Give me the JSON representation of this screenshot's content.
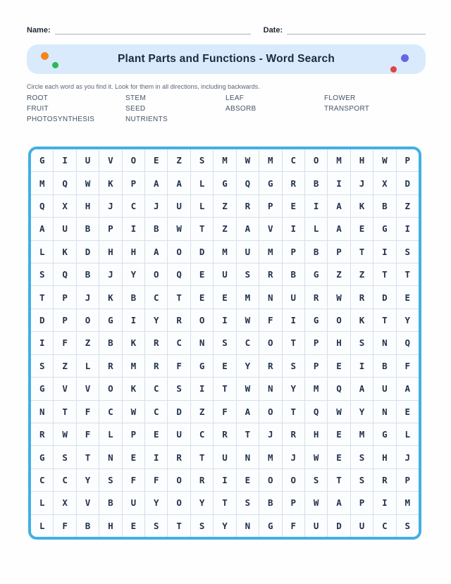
{
  "header": {
    "name_label": "Name:",
    "date_label": "Date:"
  },
  "banner": {
    "title": "Plant Parts and Functions - Word Search",
    "background_color": "#d9eafc",
    "dots": {
      "orange": "#f5861f",
      "green": "#2eb757",
      "blue": "#6467e8",
      "red": "#e34242"
    }
  },
  "instructions": "Circle each word as you find it. Look for them in all directions, including backwards.",
  "word_list": [
    "ROOT",
    "STEM",
    "LEAF",
    "FLOWER",
    "FRUIT",
    "SEED",
    "ABSORB",
    "TRANSPORT",
    "PHOTOSYNTHESIS",
    "NUTRIENTS"
  ],
  "grid": {
    "rows": 17,
    "cols": 17,
    "border_color": "#41b0e3",
    "letters": [
      "GIUVOEZSMWMCOMHWP",
      "MQWKPAALGQGRBIJXD",
      "QXHJCJULZRPEIAKBZ",
      "AUBPIBWTZAVILAEGI",
      "LKDHHAODMUMPBPTIS",
      "SQBJYOQEUSRBGZZTT",
      "TPJKBCTEEMNURWRDE",
      "DPOGIYROIWFIGOKTY",
      "IFZBKRCNSCOTPHSNQ",
      "SZLRMRFGEYRSPEIBF",
      "GVVOKCSITWNYMQAUA",
      "NTFCWCDZFAOTQWYNE",
      "RWFLPEUCRTJRHEMGL",
      "GSTNEIRTUNMJWESHJ",
      "CCYSFFORIEOOSTSRP",
      "LXVBUYOYTSBPWAPIM",
      "LFBHESTSYNGFUDUCS"
    ]
  }
}
